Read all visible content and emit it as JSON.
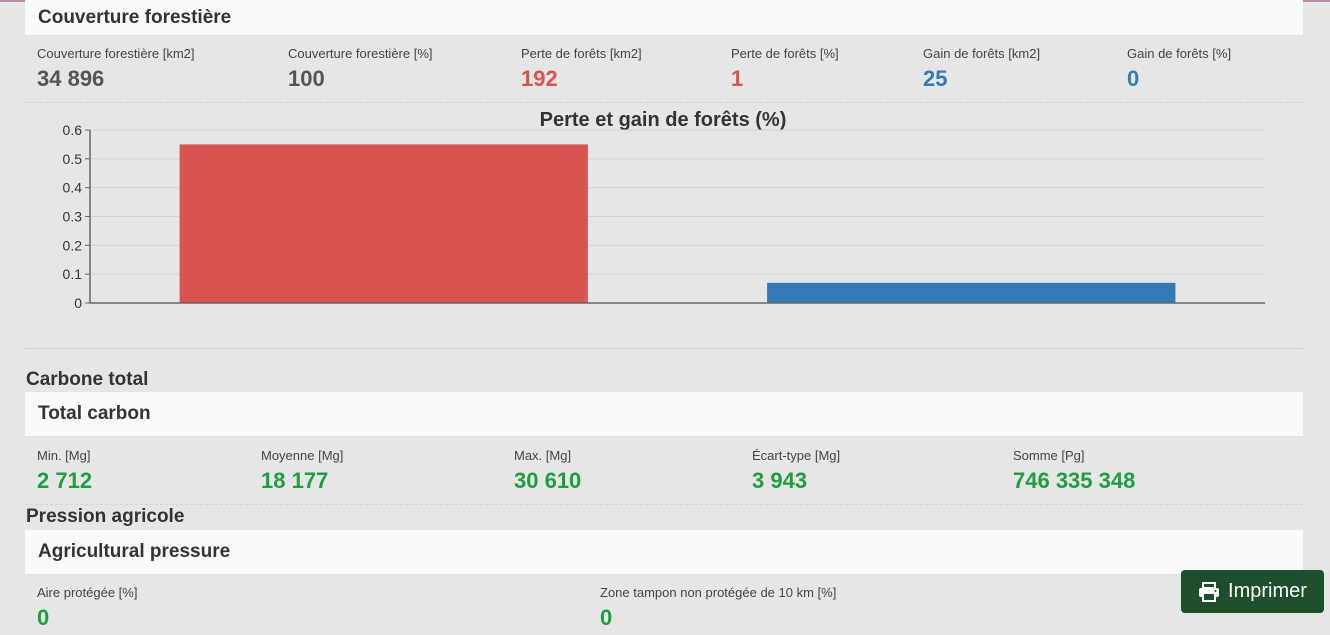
{
  "forest": {
    "header": "Couverture forestière",
    "stats": [
      {
        "label": "Couverture forestière [km2]",
        "value": "34 896"
      },
      {
        "label": "Couverture forestière [%]",
        "value": "100"
      },
      {
        "label": "Perte de forêts [km2]",
        "value": "192"
      },
      {
        "label": "Perte de forêts [%]",
        "value": "1"
      },
      {
        "label": "Gain de forêts [km2]",
        "value": "25"
      },
      {
        "label": "Gain de forêts [%]",
        "value": "0"
      }
    ]
  },
  "chart_data": {
    "type": "bar",
    "title": "Perte et gain de forêts (%)",
    "categories": [
      "",
      ""
    ],
    "values": [
      0.55,
      0.07
    ],
    "colors": [
      "#d9534f",
      "#337ab7"
    ],
    "ylim": [
      0,
      0.6
    ],
    "yticks": [
      "0",
      "0.1",
      "0.2",
      "0.3",
      "0.4",
      "0.5",
      "0.6"
    ],
    "grid": true,
    "xlabel": "",
    "ylabel": ""
  },
  "carbon": {
    "section_title": "Carbone total",
    "header": "Total carbon",
    "stats": [
      {
        "label": "Min. [Mg]",
        "value": "2 712"
      },
      {
        "label": "Moyenne [Mg]",
        "value": "18 177"
      },
      {
        "label": "Max. [Mg]",
        "value": "30 610"
      },
      {
        "label": "Écart-type [Mg]",
        "value": "3 943"
      },
      {
        "label": "Somme [Pg]",
        "value": "746 335 348"
      }
    ]
  },
  "agri": {
    "section_title": "Pression agricole",
    "header": "Agricultural pressure",
    "stats": [
      {
        "label": "Aire protégée [%]",
        "value": "0"
      },
      {
        "label": "Zone tampon non protégée de 10 km [%]",
        "value": "0"
      }
    ]
  },
  "print_button": {
    "label": "Imprimer",
    "icon": "printer-icon"
  }
}
